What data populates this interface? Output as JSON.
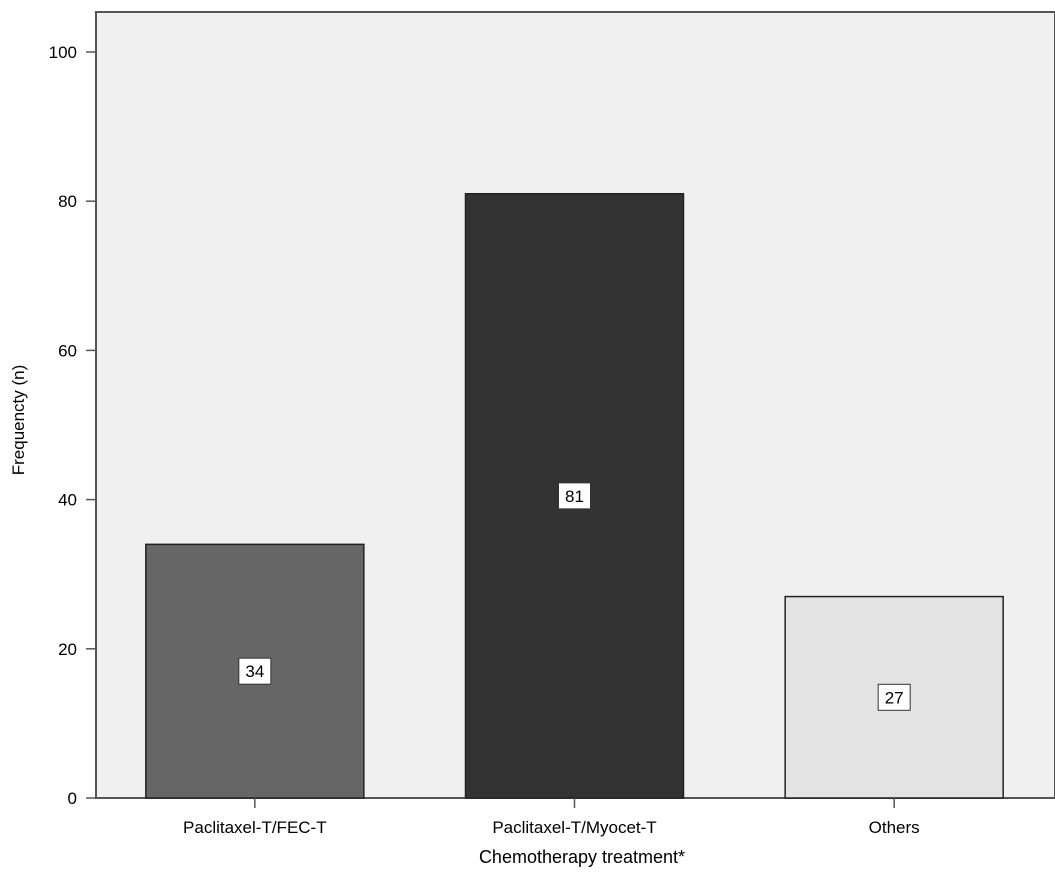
{
  "chart_data": {
    "type": "bar",
    "title": "",
    "xlabel": "Chemotherapy treatment*",
    "ylabel": "Frequencty (n)",
    "ylim": [
      0,
      100
    ],
    "yticks": [
      0,
      20,
      40,
      60,
      80,
      100
    ],
    "categories": [
      "Paclitaxel-T/FEC-T",
      "Paclitaxel-T/Myocet-T",
      "Others"
    ],
    "values": [
      34,
      81,
      27
    ],
    "data_labels": [
      "34",
      "81",
      "27"
    ],
    "bar_colors": [
      "#666666",
      "#333333",
      "#e3e3e3"
    ],
    "plot_background": "#f0f0f0",
    "grid": false,
    "legend": "none"
  }
}
